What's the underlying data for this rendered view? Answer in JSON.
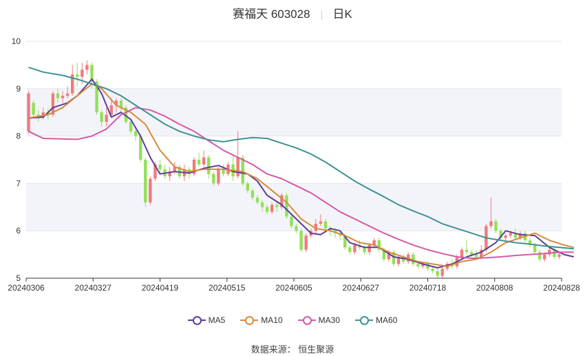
{
  "header": {
    "stock_name_code": "赛福天 603028",
    "period": "日K"
  },
  "source_text": "数据来源： 恒生聚源",
  "colors": {
    "up": "#f07b7b",
    "down": "#92e05a",
    "band": "#f3f4fa",
    "grid": "#e6e6e6",
    "axis": "#333333"
  },
  "chart_data": {
    "type": "candlestick",
    "title": "赛福天 603028",
    "x_tick_labels": [
      "20240306",
      "20240327",
      "20240419",
      "20240515",
      "20240605",
      "20240627",
      "20240718",
      "20240808",
      "20240828"
    ],
    "y_ticks": [
      5,
      6,
      7,
      8,
      9,
      10
    ],
    "ylim": [
      5,
      10
    ],
    "legend": [
      {
        "name": "MA5",
        "color": "#5b3d99"
      },
      {
        "name": "MA10",
        "color": "#d8893b"
      },
      {
        "name": "MA30",
        "color": "#d45aa6"
      },
      {
        "name": "MA60",
        "color": "#3f9191"
      }
    ],
    "candles": [
      [
        8.1,
        8.9,
        8.95,
        8.05
      ],
      [
        8.7,
        8.45,
        8.75,
        8.4
      ],
      [
        8.45,
        8.4,
        8.55,
        8.3
      ],
      [
        8.4,
        8.5,
        8.6,
        8.35
      ],
      [
        8.5,
        8.45,
        8.6,
        8.35
      ],
      [
        8.45,
        8.9,
        8.95,
        8.4
      ],
      [
        8.9,
        8.8,
        9.0,
        8.7
      ],
      [
        8.8,
        8.85,
        8.95,
        8.7
      ],
      [
        8.85,
        8.9,
        9.05,
        8.8
      ],
      [
        8.9,
        9.3,
        9.5,
        8.85
      ],
      [
        9.3,
        9.25,
        9.55,
        9.05
      ],
      [
        9.25,
        9.4,
        9.55,
        9.1
      ],
      [
        9.4,
        9.5,
        9.6,
        9.3
      ],
      [
        9.5,
        9.15,
        9.55,
        9.0
      ],
      [
        9.15,
        8.5,
        9.2,
        8.45
      ],
      [
        8.5,
        8.3,
        8.55,
        8.2
      ],
      [
        8.3,
        8.45,
        8.6,
        8.2
      ],
      [
        8.45,
        8.65,
        8.8,
        8.4
      ],
      [
        8.65,
        8.75,
        8.8,
        8.5
      ],
      [
        8.75,
        8.6,
        8.8,
        8.5
      ],
      [
        8.6,
        8.3,
        8.65,
        8.25
      ],
      [
        8.3,
        8.1,
        8.35,
        8.05
      ],
      [
        8.1,
        8.0,
        8.2,
        7.9
      ],
      [
        8.0,
        7.5,
        8.05,
        7.45
      ],
      [
        7.5,
        6.6,
        7.55,
        6.5
      ],
      [
        6.6,
        7.1,
        7.15,
        6.55
      ],
      [
        7.1,
        7.4,
        7.45,
        7.05
      ],
      [
        7.4,
        7.3,
        7.5,
        7.2
      ],
      [
        7.3,
        7.15,
        7.4,
        7.1
      ],
      [
        7.15,
        7.25,
        7.35,
        7.05
      ],
      [
        7.25,
        7.35,
        7.45,
        7.2
      ],
      [
        7.35,
        7.15,
        7.4,
        7.1
      ],
      [
        7.15,
        7.3,
        7.4,
        7.05
      ],
      [
        7.3,
        7.2,
        7.35,
        7.1
      ],
      [
        7.2,
        7.5,
        7.55,
        7.15
      ],
      [
        7.5,
        7.4,
        7.65,
        7.35
      ],
      [
        7.4,
        7.55,
        7.7,
        7.35
      ],
      [
        7.55,
        7.2,
        7.6,
        7.1
      ],
      [
        7.2,
        7.0,
        7.25,
        6.95
      ],
      [
        7.0,
        7.3,
        7.35,
        6.95
      ],
      [
        7.3,
        7.2,
        7.4,
        7.15
      ],
      [
        7.2,
        7.4,
        7.45,
        7.15
      ],
      [
        7.4,
        7.15,
        7.6,
        7.05
      ],
      [
        7.15,
        7.55,
        8.1,
        7.1
      ],
      [
        7.55,
        7.0,
        7.6,
        6.95
      ],
      [
        7.0,
        6.85,
        7.05,
        6.8
      ],
      [
        6.85,
        6.7,
        6.9,
        6.65
      ],
      [
        6.7,
        6.6,
        6.75,
        6.55
      ],
      [
        6.6,
        6.5,
        6.65,
        6.4
      ],
      [
        6.5,
        6.4,
        6.55,
        6.35
      ],
      [
        6.4,
        6.55,
        6.6,
        6.35
      ],
      [
        6.55,
        6.5,
        6.6,
        6.4
      ],
      [
        6.5,
        6.75,
        6.8,
        6.45
      ],
      [
        6.75,
        6.3,
        6.8,
        6.25
      ],
      [
        6.3,
        6.1,
        6.35,
        6.05
      ],
      [
        6.1,
        6.0,
        6.15,
        5.95
      ],
      [
        6.0,
        5.6,
        6.05,
        5.55
      ],
      [
        5.6,
        5.9,
        5.95,
        5.55
      ],
      [
        5.9,
        6.0,
        6.05,
        5.85
      ],
      [
        6.0,
        6.15,
        6.25,
        5.95
      ],
      [
        6.15,
        6.2,
        6.35,
        6.1
      ],
      [
        6.2,
        6.05,
        6.25,
        5.95
      ],
      [
        6.05,
        6.0,
        6.1,
        5.9
      ],
      [
        6.0,
        5.95,
        6.05,
        5.85
      ],
      [
        5.95,
        5.9,
        6.0,
        5.8
      ],
      [
        5.9,
        5.65,
        5.95,
        5.6
      ],
      [
        5.65,
        5.55,
        5.7,
        5.5
      ],
      [
        5.55,
        5.7,
        5.75,
        5.5
      ],
      [
        5.7,
        5.65,
        5.8,
        5.6
      ],
      [
        5.65,
        5.55,
        5.7,
        5.5
      ],
      [
        5.55,
        5.7,
        5.75,
        5.5
      ],
      [
        5.7,
        5.8,
        5.85,
        5.65
      ],
      [
        5.8,
        5.6,
        5.85,
        5.55
      ],
      [
        5.6,
        5.4,
        5.65,
        5.35
      ],
      [
        5.4,
        5.55,
        5.6,
        5.35
      ],
      [
        5.55,
        5.3,
        5.6,
        5.25
      ],
      [
        5.3,
        5.45,
        5.5,
        5.25
      ],
      [
        5.45,
        5.35,
        5.5,
        5.3
      ],
      [
        5.35,
        5.5,
        5.55,
        5.3
      ],
      [
        5.5,
        5.3,
        5.55,
        5.25
      ],
      [
        5.3,
        5.25,
        5.35,
        5.2
      ],
      [
        5.25,
        5.3,
        5.35,
        5.2
      ],
      [
        5.3,
        5.2,
        5.35,
        5.15
      ],
      [
        5.2,
        5.15,
        5.25,
        5.1
      ],
      [
        5.15,
        5.05,
        5.2,
        5.0
      ],
      [
        5.05,
        5.2,
        5.25,
        5.0
      ],
      [
        5.2,
        5.3,
        5.35,
        5.15
      ],
      [
        5.3,
        5.25,
        5.4,
        5.2
      ],
      [
        5.25,
        5.45,
        5.5,
        5.2
      ],
      [
        5.45,
        5.6,
        5.65,
        5.4
      ],
      [
        5.6,
        5.55,
        5.8,
        5.5
      ],
      [
        5.55,
        5.5,
        5.6,
        5.45
      ],
      [
        5.5,
        5.45,
        5.6,
        5.4
      ],
      [
        5.45,
        5.6,
        5.7,
        5.4
      ],
      [
        5.6,
        6.1,
        6.15,
        5.55
      ],
      [
        6.1,
        6.2,
        6.7,
        6.05
      ],
      [
        6.2,
        6.0,
        6.25,
        5.95
      ],
      [
        6.0,
        5.85,
        6.05,
        5.8
      ],
      [
        5.85,
        5.9,
        5.95,
        5.8
      ],
      [
        5.9,
        5.95,
        6.0,
        5.85
      ],
      [
        5.95,
        5.85,
        6.05,
        5.8
      ],
      [
        5.85,
        5.95,
        6.0,
        5.8
      ],
      [
        5.95,
        5.8,
        6.0,
        5.75
      ],
      [
        5.8,
        5.7,
        5.85,
        5.65
      ],
      [
        5.7,
        5.55,
        5.75,
        5.5
      ],
      [
        5.55,
        5.4,
        5.6,
        5.35
      ],
      [
        5.4,
        5.5,
        5.55,
        5.35
      ],
      [
        5.5,
        5.6,
        5.65,
        5.45
      ],
      [
        5.6,
        5.45,
        5.65,
        5.4
      ],
      [
        5.45,
        5.5,
        5.55,
        5.4
      ]
    ],
    "series": [
      {
        "name": "MA5",
        "color": "#5b3d99",
        "points": [
          [
            0,
            8.38
          ],
          [
            3,
            8.4
          ],
          [
            5,
            8.6
          ],
          [
            8,
            8.7
          ],
          [
            10,
            8.85
          ],
          [
            13,
            9.2
          ],
          [
            15,
            8.9
          ],
          [
            17,
            8.4
          ],
          [
            19,
            8.5
          ],
          [
            21,
            8.35
          ],
          [
            23,
            8.0
          ],
          [
            25,
            7.55
          ],
          [
            27,
            7.2
          ],
          [
            30,
            7.25
          ],
          [
            33,
            7.22
          ],
          [
            36,
            7.32
          ],
          [
            39,
            7.38
          ],
          [
            42,
            7.25
          ],
          [
            45,
            7.2
          ],
          [
            47,
            7.05
          ],
          [
            49,
            6.75
          ],
          [
            52,
            6.55
          ],
          [
            55,
            6.25
          ],
          [
            58,
            5.95
          ],
          [
            60,
            5.92
          ],
          [
            62,
            6.05
          ],
          [
            64,
            6.0
          ],
          [
            66,
            5.75
          ],
          [
            69,
            5.65
          ],
          [
            72,
            5.65
          ],
          [
            75,
            5.45
          ],
          [
            78,
            5.4
          ],
          [
            81,
            5.3
          ],
          [
            84,
            5.22
          ],
          [
            87,
            5.3
          ],
          [
            90,
            5.45
          ],
          [
            93,
            5.55
          ],
          [
            96,
            5.75
          ],
          [
            98,
            6.0
          ],
          [
            101,
            5.92
          ],
          [
            104,
            5.9
          ],
          [
            107,
            5.65
          ],
          [
            110,
            5.5
          ],
          [
            112,
            5.45
          ]
        ]
      },
      {
        "name": "MA10",
        "color": "#d8893b",
        "points": [
          [
            0,
            8.38
          ],
          [
            4,
            8.45
          ],
          [
            7,
            8.6
          ],
          [
            10,
            8.85
          ],
          [
            13,
            9.1
          ],
          [
            15,
            9.0
          ],
          [
            18,
            8.65
          ],
          [
            21,
            8.5
          ],
          [
            24,
            8.25
          ],
          [
            27,
            7.7
          ],
          [
            30,
            7.35
          ],
          [
            33,
            7.25
          ],
          [
            36,
            7.3
          ],
          [
            40,
            7.3
          ],
          [
            44,
            7.25
          ],
          [
            47,
            7.1
          ],
          [
            50,
            6.85
          ],
          [
            53,
            6.6
          ],
          [
            56,
            6.25
          ],
          [
            59,
            6.05
          ],
          [
            62,
            6.0
          ],
          [
            65,
            5.9
          ],
          [
            68,
            5.75
          ],
          [
            71,
            5.7
          ],
          [
            74,
            5.55
          ],
          [
            77,
            5.45
          ],
          [
            80,
            5.35
          ],
          [
            83,
            5.3
          ],
          [
            86,
            5.25
          ],
          [
            89,
            5.35
          ],
          [
            92,
            5.4
          ],
          [
            95,
            5.55
          ],
          [
            98,
            5.75
          ],
          [
            101,
            5.85
          ],
          [
            104,
            5.95
          ],
          [
            107,
            5.8
          ],
          [
            110,
            5.7
          ],
          [
            112,
            5.65
          ]
        ]
      },
      {
        "name": "MA30",
        "color": "#d45aa6",
        "points": [
          [
            0,
            8.1
          ],
          [
            3,
            7.95
          ],
          [
            7,
            7.94
          ],
          [
            10,
            7.93
          ],
          [
            13,
            8.0
          ],
          [
            16,
            8.15
          ],
          [
            19,
            8.45
          ],
          [
            22,
            8.6
          ],
          [
            25,
            8.55
          ],
          [
            28,
            8.42
          ],
          [
            31,
            8.25
          ],
          [
            34,
            8.1
          ],
          [
            37,
            7.9
          ],
          [
            40,
            7.7
          ],
          [
            43,
            7.55
          ],
          [
            46,
            7.4
          ],
          [
            49,
            7.2
          ],
          [
            52,
            7.1
          ],
          [
            55,
            6.95
          ],
          [
            58,
            6.8
          ],
          [
            61,
            6.6
          ],
          [
            64,
            6.4
          ],
          [
            67,
            6.25
          ],
          [
            70,
            6.1
          ],
          [
            73,
            5.95
          ],
          [
            76,
            5.82
          ],
          [
            79,
            5.7
          ],
          [
            82,
            5.6
          ],
          [
            85,
            5.52
          ],
          [
            88,
            5.45
          ],
          [
            91,
            5.42
          ],
          [
            94,
            5.43
          ],
          [
            97,
            5.45
          ],
          [
            100,
            5.48
          ],
          [
            103,
            5.5
          ],
          [
            106,
            5.52
          ],
          [
            109,
            5.55
          ],
          [
            112,
            5.55
          ]
        ]
      },
      {
        "name": "MA60",
        "color": "#3f9191",
        "points": [
          [
            0,
            9.45
          ],
          [
            3,
            9.35
          ],
          [
            7,
            9.28
          ],
          [
            10,
            9.2
          ],
          [
            13,
            9.1
          ],
          [
            16,
            9.0
          ],
          [
            19,
            8.85
          ],
          [
            22,
            8.65
          ],
          [
            25,
            8.45
          ],
          [
            28,
            8.25
          ],
          [
            31,
            8.1
          ],
          [
            34,
            8.0
          ],
          [
            37,
            7.92
          ],
          [
            40,
            7.88
          ],
          [
            43,
            7.93
          ],
          [
            46,
            7.97
          ],
          [
            49,
            7.95
          ],
          [
            52,
            7.85
          ],
          [
            55,
            7.75
          ],
          [
            58,
            7.62
          ],
          [
            61,
            7.45
          ],
          [
            64,
            7.25
          ],
          [
            67,
            7.05
          ],
          [
            70,
            6.88
          ],
          [
            73,
            6.72
          ],
          [
            76,
            6.55
          ],
          [
            79,
            6.42
          ],
          [
            82,
            6.3
          ],
          [
            85,
            6.15
          ],
          [
            88,
            6.05
          ],
          [
            91,
            5.95
          ],
          [
            94,
            5.85
          ],
          [
            97,
            5.8
          ],
          [
            100,
            5.75
          ],
          [
            103,
            5.72
          ],
          [
            106,
            5.68
          ],
          [
            109,
            5.65
          ],
          [
            112,
            5.62
          ]
        ]
      }
    ]
  }
}
